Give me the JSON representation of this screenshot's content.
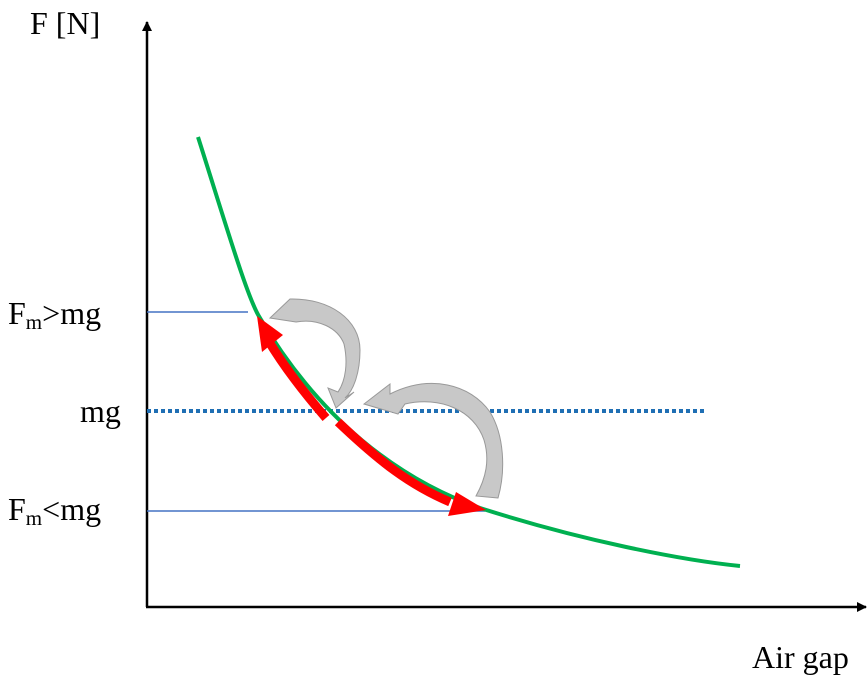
{
  "axes": {
    "y_label": "F [N]",
    "x_label": "Air gap"
  },
  "levels": {
    "upper": {
      "main": "F",
      "sub": "m",
      "relation": ">mg"
    },
    "middle": {
      "text": "mg"
    },
    "lower": {
      "main": "F",
      "sub": "m",
      "relation": "<mg"
    }
  },
  "colors": {
    "axis": "#000000",
    "force_curve": "#00b050",
    "operating_arrow": "#ff0000",
    "mg_line": "#1f6fb4",
    "guide_line": "#4472c4",
    "feedback_arrow_fill": "#c8c8c8",
    "feedback_arrow_outline": "#999999"
  }
}
